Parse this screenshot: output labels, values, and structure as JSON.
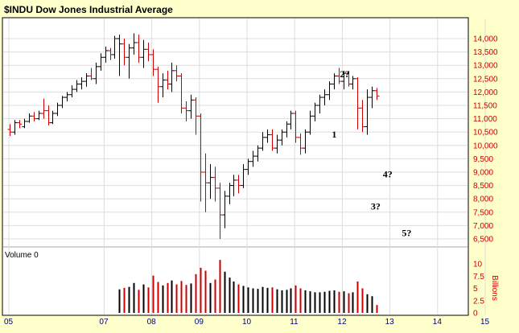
{
  "chart_data": {
    "type": "ohlc",
    "title": "$INDU Dow Jones Industrial Average",
    "price_axis": {
      "ylim": [
        6000,
        14500
      ],
      "ticks": [
        "6,500",
        "7,000",
        "7,500",
        "8,000",
        "8,500",
        "9,000",
        "9,500",
        "10,000",
        "10,500",
        "11,000",
        "11,500",
        "12,000",
        "12,500",
        "13,000",
        "13,500",
        "14,000"
      ]
    },
    "volume_panel": {
      "title": "Volume 0",
      "unit": "Billions",
      "ylim": [
        0,
        12
      ],
      "ticks": [
        "0",
        "2.5",
        "5",
        "7.5",
        "10"
      ]
    },
    "x_axis": {
      "labels": [
        "05",
        "07",
        "08",
        "09",
        "10",
        "11",
        "12",
        "13",
        "14",
        "15"
      ]
    },
    "wave_labels": [
      {
        "text": "1",
        "date": 2011.78,
        "price": 10300
      },
      {
        "text": "2?",
        "date": 2011.95,
        "price": 12550
      },
      {
        "text": "3?",
        "date": 2012.6,
        "price": 7600
      },
      {
        "text": "4?",
        "date": 2012.85,
        "price": 8800
      },
      {
        "text": "5?",
        "date": 2013.25,
        "price": 6600
      }
    ],
    "bars": [
      [
        2005.02,
        10600,
        10800,
        10350,
        10500,
        "dn",
        null
      ],
      [
        2005.12,
        10500,
        10950,
        10400,
        10850,
        "up",
        null
      ],
      [
        2005.22,
        10850,
        10950,
        10650,
        10800,
        "dn",
        null
      ],
      [
        2005.32,
        10700,
        11000,
        10650,
        10900,
        "up",
        null
      ],
      [
        2005.42,
        10900,
        11200,
        10850,
        11100,
        "up",
        null
      ],
      [
        2005.52,
        11100,
        11250,
        10900,
        11000,
        "dn",
        null
      ],
      [
        2005.62,
        11000,
        11300,
        10950,
        11200,
        "up",
        null
      ],
      [
        2005.72,
        11200,
        11750,
        11000,
        11300,
        "dn",
        null
      ],
      [
        2005.82,
        11300,
        11500,
        10750,
        10850,
        "dn",
        null
      ],
      [
        2005.92,
        10850,
        11300,
        10800,
        11200,
        "up",
        null
      ],
      [
        2006.02,
        11200,
        11600,
        11100,
        11500,
        "up",
        null
      ],
      [
        2006.12,
        11500,
        11850,
        11400,
        11800,
        "up",
        null
      ],
      [
        2006.22,
        11800,
        12000,
        11650,
        11900,
        "up",
        null
      ],
      [
        2006.32,
        11900,
        12250,
        11800,
        12100,
        "up",
        null
      ],
      [
        2006.42,
        12100,
        12450,
        12000,
        12300,
        "up",
        null
      ],
      [
        2006.52,
        12300,
        12550,
        12100,
        12400,
        "up",
        null
      ],
      [
        2006.62,
        12400,
        12700,
        12200,
        12600,
        "up",
        null
      ],
      [
        2006.72,
        12600,
        12900,
        12450,
        12500,
        "dn",
        null
      ],
      [
        2006.82,
        12500,
        13100,
        12300,
        12950,
        "up",
        null
      ],
      [
        2006.92,
        12950,
        13450,
        12800,
        13300,
        "up",
        null
      ],
      [
        2007.02,
        13300,
        13700,
        13100,
        13550,
        "up",
        null
      ],
      [
        2007.12,
        13550,
        13650,
        13200,
        13400,
        "dn",
        null
      ],
      [
        2007.22,
        13400,
        14100,
        13250,
        14000,
        "up",
        null
      ],
      [
        2007.32,
        14000,
        14150,
        12600,
        13800,
        "up",
        4.8
      ],
      [
        2007.42,
        13800,
        14000,
        13000,
        13300,
        "dn",
        5.1
      ],
      [
        2007.52,
        13300,
        13800,
        12500,
        13650,
        "up",
        5.3
      ],
      [
        2007.62,
        13650,
        14200,
        13400,
        13850,
        "up",
        6.1
      ],
      [
        2007.72,
        13850,
        14150,
        13100,
        13300,
        "dn",
        4.7
      ],
      [
        2007.82,
        13300,
        13950,
        12900,
        13600,
        "up",
        5.8
      ],
      [
        2007.92,
        13600,
        13850,
        13150,
        13400,
        "dn",
        5.2
      ],
      [
        2008.02,
        13400,
        13600,
        12600,
        12850,
        "dn",
        7.6
      ],
      [
        2008.12,
        12850,
        12950,
        11600,
        12200,
        "dn",
        6.3
      ],
      [
        2008.22,
        12200,
        12700,
        11800,
        12450,
        "up",
        5.6
      ],
      [
        2008.32,
        12450,
        12800,
        12100,
        12300,
        "dn",
        6.1
      ],
      [
        2008.42,
        12300,
        13100,
        12000,
        12800,
        "up",
        6.6
      ],
      [
        2008.52,
        12800,
        13000,
        12400,
        12600,
        "dn",
        5.8
      ],
      [
        2008.62,
        12600,
        12700,
        11200,
        11400,
        "dn",
        6.5
      ],
      [
        2008.72,
        11400,
        11650,
        10900,
        11300,
        "dn",
        5.7
      ],
      [
        2008.82,
        11300,
        11900,
        11000,
        11700,
        "up",
        6.0
      ],
      [
        2008.92,
        11700,
        11800,
        10400,
        11100,
        "dn",
        7.9
      ],
      [
        2009.02,
        11100,
        11200,
        7900,
        9000,
        "dn",
        9.2
      ],
      [
        2009.12,
        9000,
        9700,
        7500,
        8600,
        "dn",
        8.6
      ],
      [
        2009.22,
        8600,
        9300,
        8000,
        8800,
        "up",
        6.1
      ],
      [
        2009.32,
        8800,
        9200,
        7900,
        8400,
        "dn",
        6.8
      ],
      [
        2009.42,
        8400,
        8600,
        6500,
        7400,
        "dn",
        10.8
      ],
      [
        2009.52,
        7400,
        8300,
        6900,
        8100,
        "up",
        8.4
      ],
      [
        2009.62,
        8100,
        8600,
        7800,
        8500,
        "up",
        7.2
      ],
      [
        2009.72,
        8500,
        8900,
        8100,
        8700,
        "up",
        6.4
      ],
      [
        2009.82,
        8700,
        8900,
        8200,
        8500,
        "dn",
        5.8
      ],
      [
        2009.92,
        8500,
        9300,
        8400,
        9100,
        "up",
        5.5
      ],
      [
        2010.02,
        9100,
        9500,
        8900,
        9400,
        "up",
        5.2
      ],
      [
        2010.12,
        9400,
        9800,
        9200,
        9600,
        "up",
        5.0
      ],
      [
        2010.22,
        9600,
        10000,
        9400,
        9900,
        "up",
        4.9
      ],
      [
        2010.32,
        9900,
        10500,
        9800,
        10300,
        "up",
        5.3
      ],
      [
        2010.42,
        10300,
        10600,
        10100,
        10400,
        "up",
        5.1
      ],
      [
        2010.52,
        10400,
        10600,
        9800,
        9900,
        "dn",
        5.2
      ],
      [
        2010.62,
        9900,
        10400,
        9700,
        10200,
        "up",
        4.8
      ],
      [
        2010.72,
        10200,
        10600,
        10000,
        10500,
        "up",
        4.6
      ],
      [
        2010.82,
        10500,
        10900,
        10300,
        10800,
        "up",
        4.7
      ],
      [
        2010.92,
        10800,
        11300,
        10600,
        11200,
        "up",
        5.0
      ],
      [
        2011.02,
        11200,
        11300,
        10100,
        10300,
        "dn",
        5.6
      ],
      [
        2011.12,
        10300,
        10450,
        9650,
        9900,
        "dn",
        5.0
      ],
      [
        2011.22,
        9900,
        10600,
        9700,
        10500,
        "up",
        4.6
      ],
      [
        2011.32,
        10500,
        11300,
        10400,
        11100,
        "up",
        4.4
      ],
      [
        2011.42,
        11100,
        11600,
        10900,
        11500,
        "up",
        4.2
      ],
      [
        2011.52,
        11500,
        11900,
        11200,
        11800,
        "up",
        4.2
      ],
      [
        2011.62,
        11800,
        12100,
        11500,
        11900,
        "up",
        4.3
      ],
      [
        2011.72,
        11900,
        12400,
        11700,
        12300,
        "up",
        4.5
      ],
      [
        2011.82,
        12300,
        12700,
        12100,
        12600,
        "up",
        4.6
      ],
      [
        2011.92,
        12600,
        12900,
        12300,
        12400,
        "dn",
        4.3
      ],
      [
        2012.02,
        12400,
        12800,
        12100,
        12700,
        "up",
        4.4
      ],
      [
        2012.12,
        12700,
        12800,
        12200,
        12300,
        "dn",
        4.0
      ],
      [
        2012.22,
        12300,
        12600,
        12100,
        12500,
        "up",
        4.2
      ],
      [
        2012.32,
        12500,
        12550,
        10600,
        11400,
        "dn",
        6.4
      ],
      [
        2012.42,
        11400,
        11700,
        10500,
        10700,
        "dn",
        5.0
      ],
      [
        2012.52,
        10700,
        12100,
        10400,
        11800,
        "up",
        3.8
      ],
      [
        2012.62,
        11800,
        12200,
        11400,
        12050,
        "up",
        3.4
      ],
      [
        2012.72,
        12050,
        12150,
        11700,
        11850,
        "dn",
        1.6
      ]
    ]
  }
}
